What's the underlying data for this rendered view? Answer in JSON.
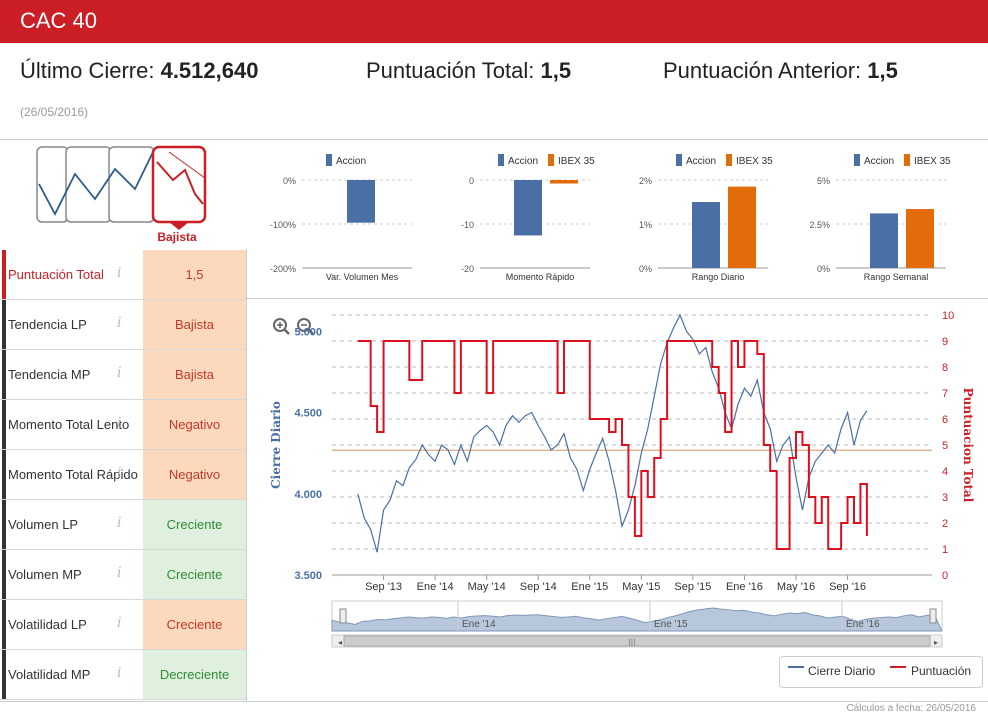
{
  "header": {
    "title": "CAC 40"
  },
  "summary": {
    "last_close_label": "Último Cierre: ",
    "last_close_value": "4.512,640",
    "total_score_label": "Puntuación Total: ",
    "total_score_value": "1,5",
    "prev_score_label": "Puntuación Anterior: ",
    "prev_score_value": "1,5",
    "date": "(26/05/2016)"
  },
  "trend_icon": {
    "label": "Bajista",
    "selected_index": 3
  },
  "criteria": [
    {
      "label": "Puntuación Total",
      "value": "1,5",
      "status": "neg",
      "highlight": true
    },
    {
      "label": "Tendencia LP",
      "value": "Bajista",
      "status": "neg"
    },
    {
      "label": "Tendencia MP",
      "value": "Bajista",
      "status": "neg"
    },
    {
      "label": "Momento Total Lento",
      "value": "Negativo",
      "status": "neg"
    },
    {
      "label": "Momento Total Rápido",
      "value": "Negativo",
      "status": "neg"
    },
    {
      "label": "Volumen LP",
      "value": "Creciente",
      "status": "pos"
    },
    {
      "label": "Volumen MP",
      "value": "Creciente",
      "status": "pos"
    },
    {
      "label": "Volatilidad LP",
      "value": "Creciente",
      "status": "neg"
    },
    {
      "label": "Volatilidad MP",
      "value": "Decreciente",
      "status": "pos"
    }
  ],
  "info_glyph": "i",
  "colors": {
    "accent": "#cc1f25",
    "accion": "#4a6fa5",
    "ibex": "#e36c0a",
    "ref_line": "#e0b894"
  },
  "chart_data": [
    {
      "type": "bar",
      "title": "Var. Volumen Mes",
      "legend": [
        "Accion"
      ],
      "yticks": [
        "0%",
        "-100%",
        "-200%"
      ],
      "ylim": [
        -200,
        0
      ],
      "series": [
        {
          "name": "Accion",
          "values": [
            -97
          ]
        }
      ]
    },
    {
      "type": "bar",
      "title": "Momento Rápido",
      "legend": [
        "Accion",
        "IBEX 35"
      ],
      "yticks": [
        "0",
        "-10",
        "-20"
      ],
      "ylim": [
        -20,
        0
      ],
      "series": [
        {
          "name": "Accion",
          "values": [
            -12.6
          ]
        },
        {
          "name": "IBEX 35",
          "values": [
            -0.8
          ]
        }
      ]
    },
    {
      "type": "bar",
      "title": "Rango Diario",
      "legend": [
        "Accion",
        "IBEX 35"
      ],
      "yticks": [
        "2%",
        "1%",
        "0%"
      ],
      "ylim": [
        0,
        2
      ],
      "series": [
        {
          "name": "Accion",
          "values": [
            1.5
          ]
        },
        {
          "name": "IBEX 35",
          "values": [
            1.85
          ]
        }
      ]
    },
    {
      "type": "bar",
      "title": "Rango Semanal",
      "legend": [
        "Accion",
        "IBEX 35"
      ],
      "yticks": [
        "5%",
        "2.5%",
        "0%"
      ],
      "ylim": [
        0,
        5
      ],
      "series": [
        {
          "name": "Accion",
          "values": [
            3.1
          ]
        },
        {
          "name": "IBEX 35",
          "values": [
            3.35
          ]
        }
      ]
    },
    {
      "type": "line",
      "ylabel": "Cierre Diario",
      "y2label": "Puntuacion Total",
      "ylim": [
        3500,
        5100
      ],
      "y_ticks": [
        "5.000",
        "4.500",
        "4.000",
        "3.500"
      ],
      "y_tick_values": [
        5000,
        4500,
        4000,
        3500
      ],
      "y2lim": [
        0,
        10
      ],
      "y2_ticks": [
        "10",
        "9",
        "8",
        "7",
        "6",
        "5",
        "4",
        "3",
        "2",
        "1",
        "0"
      ],
      "x_ticks": [
        "Sep '13",
        "Ene '14",
        "May '14",
        "Sep '14",
        "Ene '15",
        "May '15",
        "Sep '15",
        "Ene '16",
        "May '16",
        "Sep '16"
      ],
      "x_tick_months": [
        8,
        12,
        16,
        20,
        24,
        28,
        32,
        36,
        40,
        44
      ],
      "x_start": "2013-06",
      "x_end": "2016-09",
      "reference_level": 4.8,
      "series": [
        {
          "name": "Cierre Diario",
          "points": [
            [
              0,
              4000
            ],
            [
              0.5,
              3850
            ],
            [
              1,
              3780
            ],
            [
              1.5,
              3640
            ],
            [
              2,
              3900
            ],
            [
              2.5,
              3960
            ],
            [
              3,
              4080
            ],
            [
              3.5,
              4050
            ],
            [
              4,
              4160
            ],
            [
              4.5,
              4210
            ],
            [
              5,
              4300
            ],
            [
              5.5,
              4240
            ],
            [
              6,
              4200
            ],
            [
              6.5,
              4300
            ],
            [
              7,
              4270
            ],
            [
              7.5,
              4180
            ],
            [
              8,
              4300
            ],
            [
              8.5,
              4200
            ],
            [
              9,
              4350
            ],
            [
              9.5,
              4390
            ],
            [
              10,
              4420
            ],
            [
              10.5,
              4380
            ],
            [
              11,
              4300
            ],
            [
              11.5,
              4420
            ],
            [
              12,
              4480
            ],
            [
              12.5,
              4440
            ],
            [
              13,
              4480
            ],
            [
              13.5,
              4500
            ],
            [
              14,
              4420
            ],
            [
              14.5,
              4350
            ],
            [
              15,
              4270
            ],
            [
              15.5,
              4300
            ],
            [
              16,
              4370
            ],
            [
              16.5,
              4220
            ],
            [
              17,
              4150
            ],
            [
              17.5,
              4020
            ],
            [
              18,
              4150
            ],
            [
              18.5,
              4250
            ],
            [
              19,
              4340
            ],
            [
              19.5,
              4200
            ],
            [
              20,
              4020
            ],
            [
              20.5,
              3800
            ],
            [
              21,
              3900
            ],
            [
              21.5,
              4050
            ],
            [
              22,
              4250
            ],
            [
              22.5,
              4400
            ],
            [
              23,
              4600
            ],
            [
              23.5,
              4800
            ],
            [
              24,
              4930
            ],
            [
              24.5,
              5020
            ],
            [
              25,
              5100
            ],
            [
              25.5,
              5000
            ],
            [
              26,
              4950
            ],
            [
              26.5,
              4860
            ],
            [
              27,
              4900
            ],
            [
              27.5,
              4750
            ],
            [
              28,
              4650
            ],
            [
              28.5,
              4500
            ],
            [
              29,
              4400
            ],
            [
              29.5,
              4550
            ],
            [
              30,
              4650
            ],
            [
              30.5,
              4600
            ],
            [
              31,
              4700
            ],
            [
              31.5,
              4500
            ],
            [
              32,
              4400
            ],
            [
              32.5,
              4200
            ],
            [
              33,
              4300
            ],
            [
              33.5,
              4350
            ],
            [
              34,
              4100
            ],
            [
              34.5,
              3900
            ],
            [
              35,
              4100
            ],
            [
              35.5,
              4200
            ],
            [
              36,
              4250
            ],
            [
              36.5,
              4300
            ],
            [
              37,
              4250
            ],
            [
              37.5,
              4400
            ],
            [
              38,
              4500
            ],
            [
              38.5,
              4300
            ],
            [
              39,
              4450
            ],
            [
              39.5,
              4512
            ]
          ]
        },
        {
          "name": "Puntuación",
          "points": [
            [
              0,
              9
            ],
            [
              0.5,
              9
            ],
            [
              1,
              6.5
            ],
            [
              1.5,
              5.5
            ],
            [
              2,
              9
            ],
            [
              3,
              9
            ],
            [
              3.5,
              9
            ],
            [
              4,
              7.5
            ],
            [
              5,
              9
            ],
            [
              6,
              9
            ],
            [
              7,
              9
            ],
            [
              7.5,
              7
            ],
            [
              8,
              9
            ],
            [
              9,
              9
            ],
            [
              10,
              7
            ],
            [
              10.5,
              9
            ],
            [
              11,
              9
            ],
            [
              12,
              9
            ],
            [
              13,
              9
            ],
            [
              14,
              9
            ],
            [
              15,
              9
            ],
            [
              15.5,
              7
            ],
            [
              16,
              9
            ],
            [
              17,
              9
            ],
            [
              18,
              6
            ],
            [
              19,
              6
            ],
            [
              19.5,
              5.5
            ],
            [
              20,
              6
            ],
            [
              20.5,
              5
            ],
            [
              21,
              3
            ],
            [
              21.5,
              1.5
            ],
            [
              22,
              4
            ],
            [
              22.5,
              3
            ],
            [
              23,
              4.5
            ],
            [
              23.5,
              6
            ],
            [
              24,
              9
            ],
            [
              25,
              9
            ],
            [
              26,
              9
            ],
            [
              27,
              9
            ],
            [
              27.5,
              8
            ],
            [
              28,
              7
            ],
            [
              28.5,
              5.5
            ],
            [
              29,
              9
            ],
            [
              29.5,
              8
            ],
            [
              30,
              9
            ],
            [
              31,
              8.5
            ],
            [
              31.5,
              5
            ],
            [
              32,
              4
            ],
            [
              32.5,
              1
            ],
            [
              33,
              1
            ],
            [
              33.5,
              4.5
            ],
            [
              34,
              5.5
            ],
            [
              34.5,
              5
            ],
            [
              35,
              3
            ],
            [
              35.5,
              2
            ],
            [
              36,
              3
            ],
            [
              36.5,
              1
            ],
            [
              37,
              1
            ],
            [
              37.5,
              2
            ],
            [
              38,
              3
            ],
            [
              38.5,
              2
            ],
            [
              39,
              3.5
            ],
            [
              39.5,
              1.5
            ]
          ]
        }
      ]
    }
  ],
  "navigator": {
    "labels": [
      "Ene '14",
      "Ene '15",
      "Ene '16"
    ],
    "scroll_glyph": "|||"
  },
  "main_legend": {
    "accion": "Cierre Diario",
    "score": "Puntuación"
  },
  "footer": "Cálculos a fecha: 26/05/2016"
}
